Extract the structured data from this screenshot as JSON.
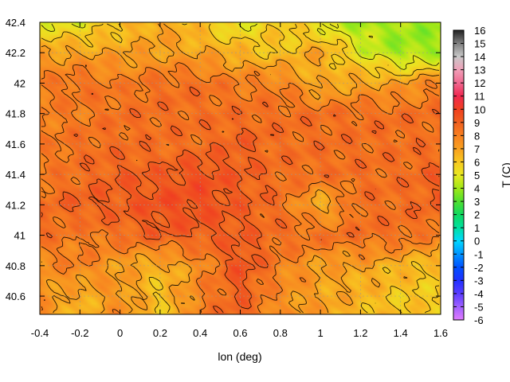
{
  "chart_data": {
    "type": "heatmap",
    "title": "",
    "xlabel": "lon (deg)",
    "ylabel": "",
    "colorbar_label": "T (C)",
    "xlim": [
      -0.4,
      1.6
    ],
    "ylim": [
      40.48,
      42.4
    ],
    "color_range": [
      -6,
      16
    ],
    "x_ticks": [
      -0.4,
      -0.2,
      0,
      0.2,
      0.4,
      0.6,
      0.8,
      1,
      1.2,
      1.4,
      1.6
    ],
    "x_tick_labels": [
      "-0.4",
      "-0.2",
      "0",
      "0.2",
      "0.4",
      "0.6",
      "0.8",
      "1",
      "1.2",
      "1.4",
      "1.6"
    ],
    "y_ticks": [
      40.6,
      40.8,
      41,
      41.2,
      41.4,
      41.6,
      41.8,
      42,
      42.2,
      42.4
    ],
    "y_tick_labels": [
      "40.6",
      "40.8",
      "41",
      "41.2",
      "41.4",
      "41.6",
      "41.8",
      "42",
      "42.2",
      "42.4"
    ],
    "colorbar_ticks": [
      -6,
      -5,
      -4,
      -3,
      -2,
      -1,
      0,
      1,
      2,
      3,
      4,
      5,
      6,
      7,
      8,
      9,
      10,
      11,
      12,
      13,
      14,
      15,
      16
    ],
    "colorbar_tick_labels": [
      "-6",
      "-5",
      "-4",
      "-3",
      "-2",
      "-1",
      "0",
      "1",
      "2",
      "3",
      "4",
      "5",
      "6",
      "7",
      "8",
      "9",
      "10",
      "11",
      "12",
      "13",
      "14",
      "15",
      "16"
    ],
    "grid": true,
    "palette": [
      {
        "value": -6,
        "color": "#e07bff"
      },
      {
        "value": -5,
        "color": "#a060ff"
      },
      {
        "value": -4,
        "color": "#5a3cff"
      },
      {
        "value": -3,
        "color": "#2030ff"
      },
      {
        "value": -2,
        "color": "#0050ff"
      },
      {
        "value": -1,
        "color": "#0094ff"
      },
      {
        "value": 0,
        "color": "#00d8ff"
      },
      {
        "value": 1,
        "color": "#00e0a0"
      },
      {
        "value": 2,
        "color": "#10d860"
      },
      {
        "value": 3,
        "color": "#50e030"
      },
      {
        "value": 4,
        "color": "#a0e818"
      },
      {
        "value": 5,
        "color": "#e8e820"
      },
      {
        "value": 6,
        "color": "#f8c820"
      },
      {
        "value": 7,
        "color": "#f8a020"
      },
      {
        "value": 8,
        "color": "#f88020"
      },
      {
        "value": 9,
        "color": "#f06020"
      },
      {
        "value": 10,
        "color": "#f04020"
      },
      {
        "value": 11,
        "color": "#f02850"
      },
      {
        "value": 12,
        "color": "#f06890"
      },
      {
        "value": 13,
        "color": "#f0a0b8"
      },
      {
        "value": 14,
        "color": "#c8c8c8"
      },
      {
        "value": 15,
        "color": "#808080"
      },
      {
        "value": 16,
        "color": "#202020"
      }
    ],
    "field_estimate": {
      "lon": [
        -0.4,
        -0.2,
        0,
        0.2,
        0.4,
        0.6,
        0.8,
        1,
        1.2,
        1.4,
        1.6
      ],
      "lat": [
        42.4,
        42.2,
        42.0,
        41.8,
        41.6,
        41.4,
        41.2,
        41.0,
        40.8,
        40.6
      ],
      "values": [
        [
          5,
          5,
          6,
          7,
          6,
          5,
          6,
          5,
          4,
          4,
          4
        ],
        [
          7,
          7,
          7,
          7,
          7,
          6.5,
          6,
          7,
          5,
          4,
          4
        ],
        [
          8,
          8.5,
          8,
          8.5,
          8.5,
          8,
          8,
          6.5,
          7,
          7,
          8
        ],
        [
          8,
          8,
          8.5,
          8.5,
          8.5,
          8.5,
          8.5,
          8.5,
          8.5,
          8.5,
          8.5
        ],
        [
          8,
          8.5,
          8.5,
          8.5,
          8.5,
          9,
          8.5,
          8.5,
          8.5,
          8.5,
          8.5
        ],
        [
          8,
          8.5,
          9,
          9,
          9.5,
          9,
          8.5,
          8.5,
          8.5,
          8.5,
          9
        ],
        [
          8.5,
          9,
          9,
          9.5,
          9.5,
          9,
          8.5,
          6.5,
          8.5,
          8.5,
          9
        ],
        [
          8.5,
          8,
          8.5,
          9,
          9,
          9,
          8.5,
          8.5,
          8.5,
          8.5,
          8
        ],
        [
          7.5,
          8,
          7,
          6.5,
          7.5,
          9.5,
          8,
          7,
          7,
          6.5,
          6
        ],
        [
          7.5,
          6.5,
          7.5,
          6,
          8,
          9,
          7.5,
          7,
          6.5,
          6,
          6
        ]
      ]
    }
  }
}
